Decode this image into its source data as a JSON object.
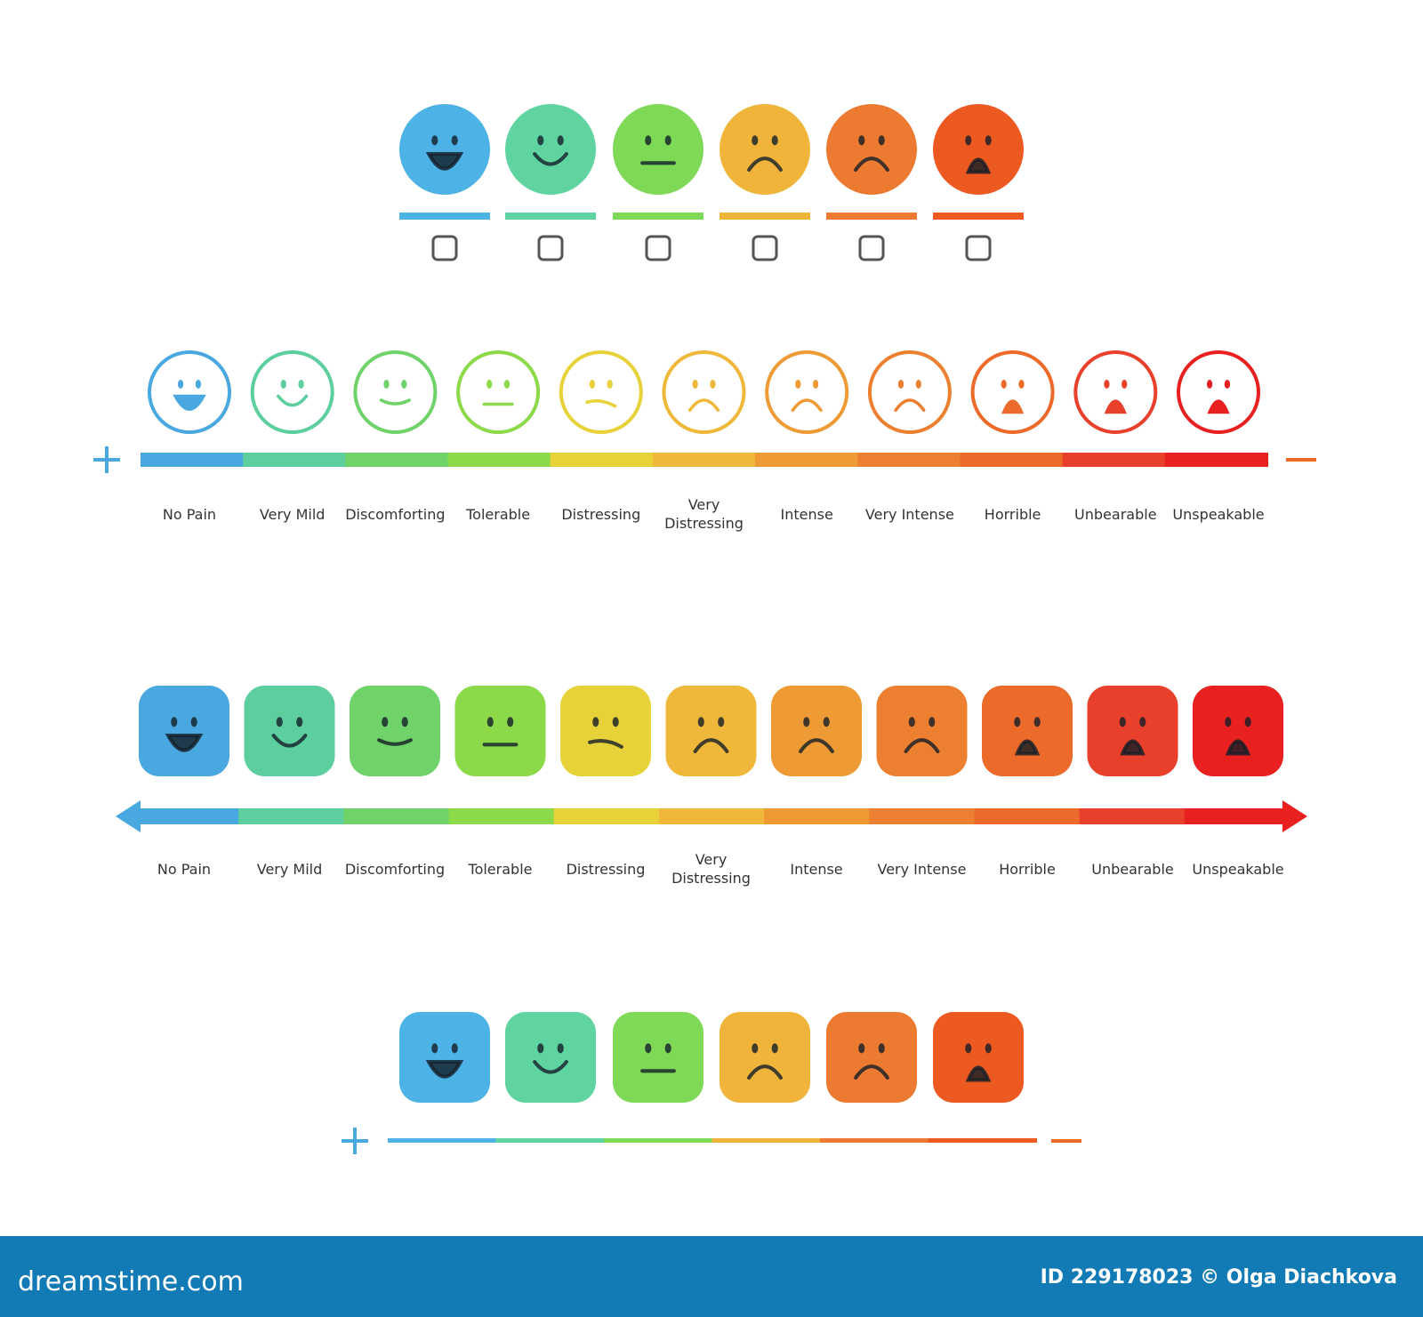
{
  "scale_2": {
    "labels": [
      "No Pain",
      "Very Mild",
      "Discomforting",
      "Tolerable",
      "Distressing",
      "Very Distressing",
      "Intense",
      "Very Intense",
      "Horrible",
      "Unbearable",
      "Unspeakable"
    ]
  },
  "scale_3": {
    "labels": [
      "No Pain",
      "Very Mild",
      "Discomforting",
      "Tolerable",
      "Distressing",
      "Very Distressing",
      "Intense",
      "Very Intense",
      "Horrible",
      "Unbearable",
      "Unspeakable"
    ]
  },
  "footer": {
    "site": "dreamstime.com",
    "credit": "ID 229178023 © Olga Diachkova"
  }
}
